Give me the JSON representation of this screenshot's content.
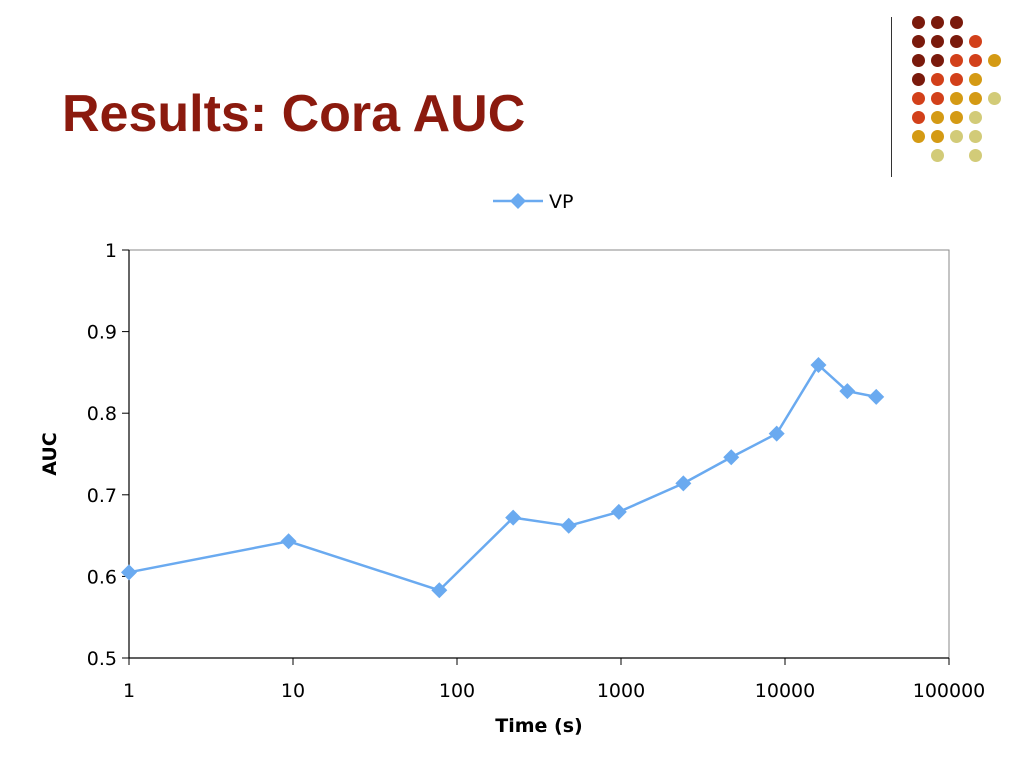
{
  "slide": {
    "title": "Results: Cora AUC"
  },
  "decoration": {
    "dot_colors": {
      "dark_red": "#7a1a0c",
      "red_orange": "#d2401a",
      "gold": "#d49a14",
      "khaki": "#d2cb78"
    },
    "dot_rows": [
      [
        "dark_red",
        "dark_red",
        "dark_red",
        null,
        null
      ],
      [
        "dark_red",
        "dark_red",
        "dark_red",
        "red_orange",
        null
      ],
      [
        "dark_red",
        "dark_red",
        "red_orange",
        "red_orange",
        "gold"
      ],
      [
        "dark_red",
        "red_orange",
        "red_orange",
        "gold",
        null
      ],
      [
        "red_orange",
        "red_orange",
        "gold",
        "gold",
        "khaki"
      ],
      [
        "red_orange",
        "gold",
        "gold",
        "khaki",
        null
      ],
      [
        "gold",
        "gold",
        "khaki",
        "khaki",
        null
      ],
      [
        null,
        "khaki",
        null,
        "khaki",
        null
      ]
    ]
  },
  "chart_data": {
    "type": "line",
    "xlabel": "Time (s)",
    "ylabel": "AUC",
    "x_scale": "log",
    "xlim": [
      1,
      100000
    ],
    "ylim": [
      0.5,
      1
    ],
    "x_ticks": [
      1,
      10,
      100,
      1000,
      10000,
      100000
    ],
    "x_tick_labels": [
      "1",
      "10",
      "100",
      "1000",
      "10000",
      "100000"
    ],
    "y_ticks": [
      0.5,
      0.6,
      0.7,
      0.8,
      0.9,
      1
    ],
    "y_tick_labels": [
      "0.5",
      "0.6",
      "0.7",
      "0.8",
      "0.9",
      "1"
    ],
    "grid": false,
    "legend_position": "top-center",
    "line_color": "#6aaaf0",
    "series": [
      {
        "name": "VP",
        "marker": "diamond",
        "x": [
          1,
          9.4,
          78,
          220,
          480,
          970,
          2400,
          4700,
          8900,
          16000,
          24000,
          36000
        ],
        "y": [
          0.605,
          0.643,
          0.583,
          0.672,
          0.662,
          0.679,
          0.714,
          0.746,
          0.775,
          0.859,
          0.827,
          0.82
        ]
      }
    ]
  }
}
